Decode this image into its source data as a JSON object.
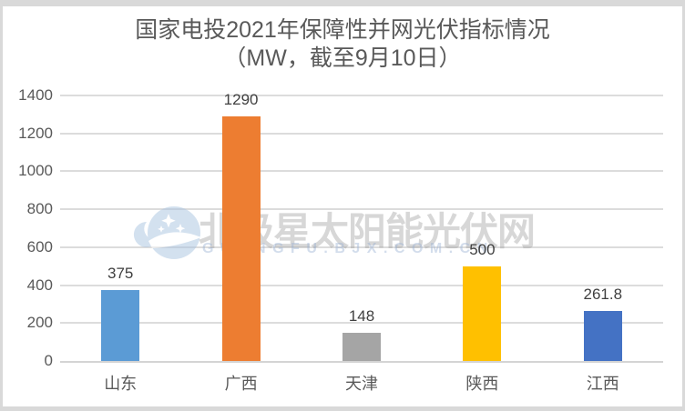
{
  "title": {
    "line1": "国家电投2021年保障性并网光伏指标情况",
    "line2": "（MW，截至9月10日）",
    "color": "#595959"
  },
  "chart_data": {
    "type": "bar",
    "categories": [
      "山东",
      "广西",
      "天津",
      "陕西",
      "江西"
    ],
    "values": [
      375,
      1290,
      148,
      500,
      261.8
    ],
    "value_labels": [
      "375",
      "1290",
      "148",
      "500",
      "261.8"
    ],
    "bar_colors": [
      "#5B9BD5",
      "#ED7D31",
      "#A5A5A5",
      "#FFC000",
      "#4472C4"
    ],
    "title": "国家电投2021年保障性并网光伏指标情况（MW，截至9月10日）",
    "xlabel": "",
    "ylabel": "",
    "ylim": [
      0,
      1400
    ],
    "yticks": [
      0,
      200,
      400,
      600,
      800,
      1000,
      1200,
      1400
    ],
    "grid": true,
    "gridline_color": "#dcdcdc",
    "axis_text_color": "#595959",
    "value_label_color": "#404040",
    "legend": "none"
  },
  "watermark": {
    "logo": "bjx-polar-star-logo",
    "text": "北极星太阳能光伏网",
    "subtext": "GUANGFU.BJX.COM.CN"
  }
}
